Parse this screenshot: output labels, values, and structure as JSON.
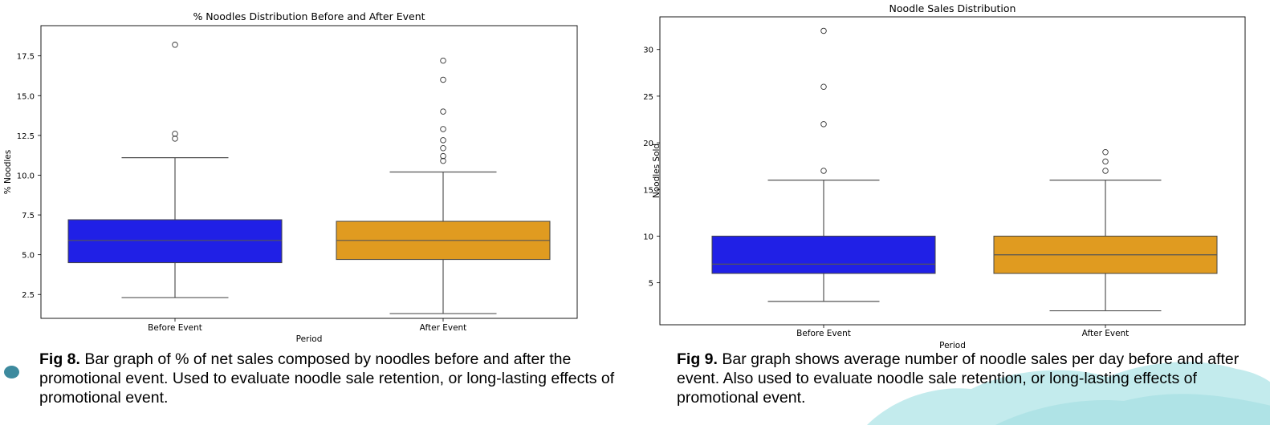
{
  "chart_data": [
    {
      "type": "box",
      "title": "% Noodles Distribution Before and After Event",
      "xlabel": "Period",
      "ylabel": "% Noodles",
      "categories": [
        "Before Event",
        "After Event"
      ],
      "ylim": [
        1.0,
        19.4
      ],
      "yticks": [
        2.5,
        5.0,
        7.5,
        10.0,
        12.5,
        15.0,
        17.5
      ],
      "ytick_labels": [
        "2.5",
        "5.0",
        "7.5",
        "10.0",
        "12.5",
        "15.0",
        "17.5"
      ],
      "boxes": [
        {
          "category": "Before Event",
          "color": "#2020e6",
          "whislo": 2.3,
          "q1": 4.5,
          "med": 5.9,
          "q3": 7.2,
          "whishi": 11.1,
          "fliers": [
            18.2,
            12.6,
            12.3
          ]
        },
        {
          "category": "After Event",
          "color": "#e09b20",
          "whislo": 1.3,
          "q1": 4.7,
          "med": 5.9,
          "q3": 7.1,
          "whishi": 10.2,
          "fliers": [
            17.2,
            16.0,
            14.0,
            12.9,
            12.2,
            11.7,
            11.2,
            10.9
          ]
        }
      ]
    },
    {
      "type": "box",
      "title": "Noodle Sales Distribution",
      "xlabel": "Period",
      "ylabel": "Noodles Sold",
      "categories": [
        "Before Event",
        "After Event"
      ],
      "ylim": [
        0.5,
        33.5
      ],
      "yticks": [
        5,
        10,
        15,
        20,
        25,
        30
      ],
      "ytick_labels": [
        "5",
        "10",
        "15",
        "20",
        "25",
        "30"
      ],
      "boxes": [
        {
          "category": "Before Event",
          "color": "#2020e6",
          "whislo": 3,
          "q1": 6,
          "med": 7,
          "q3": 10,
          "whishi": 16,
          "fliers": [
            32,
            26,
            22,
            17
          ]
        },
        {
          "category": "After Event",
          "color": "#e09b20",
          "whislo": 2,
          "q1": 6,
          "med": 8,
          "q3": 10,
          "whishi": 16,
          "fliers": [
            19,
            18,
            17
          ]
        }
      ]
    }
  ],
  "captions": {
    "fig8_label": "Fig 8.",
    "fig8_text": "Bar graph of % of net sales composed by noodles before and after the promotional event. Used to evaluate noodle sale retention, or long-lasting effects of promotional event.",
    "fig9_label": "Fig 9.",
    "fig9_text": "Bar graph shows average number of noodle sales per day before and after event. Also used to evaluate noodle sale retention, or long-lasting effects of promotional event."
  },
  "decor": {
    "bullet_color": "#3d8a9e",
    "splash_color": "#b9e8ea"
  }
}
